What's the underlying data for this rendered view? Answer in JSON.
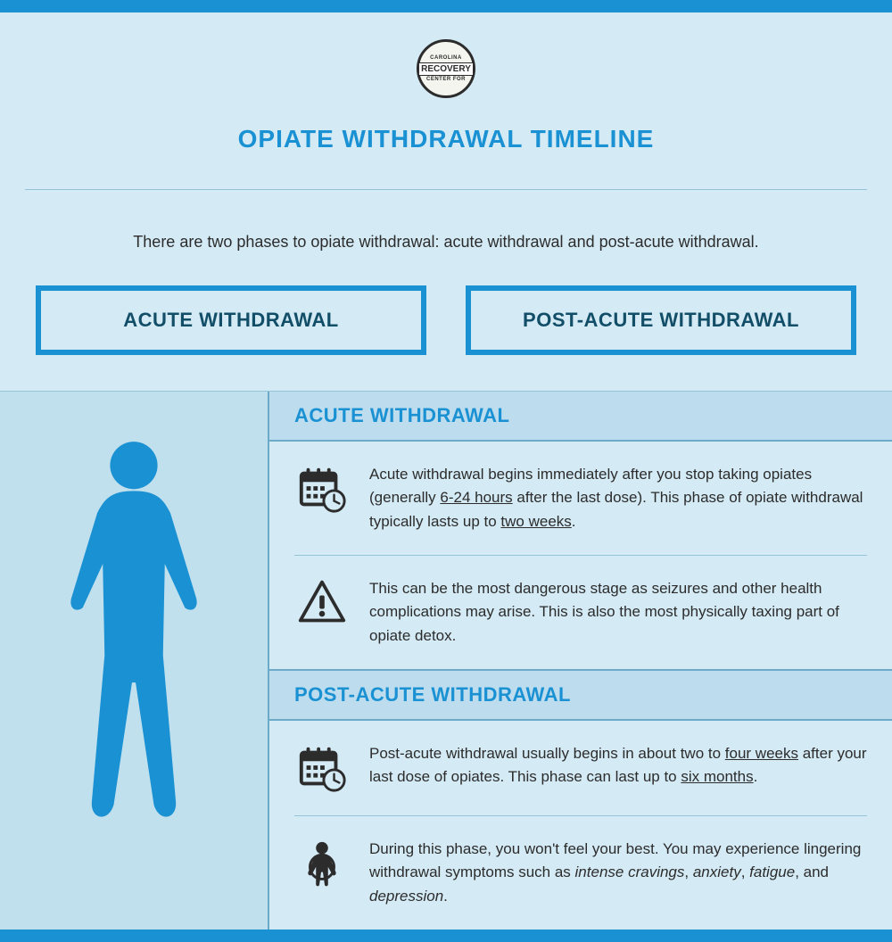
{
  "colors": {
    "accent": "#1a91d3",
    "bg": "#d4eaf5",
    "bg_alt": "#c0e0ee",
    "header_bg": "#bddced",
    "border": "#95c4d9",
    "border_strong": "#6cabc7",
    "text": "#2c2c2c",
    "box_text": "#124e68",
    "icon": "#2c2c2c"
  },
  "logo": {
    "top_text": "CAROLINA",
    "mid_text": "RECOVERY",
    "bottom_text": "CENTER FOR"
  },
  "title": "OPIATE WITHDRAWAL TIMELINE",
  "intro": "There are two phases to opiate withdrawal: acute withdrawal and post-acute withdrawal.",
  "phases": {
    "acute_label": "ACUTE WITHDRAWAL",
    "post_label": "POST-ACUTE WITHDRAWAL"
  },
  "sections": {
    "acute": {
      "header": "ACUTE WITHDRAWAL",
      "rows": [
        {
          "icon": "calendar-clock",
          "parts": [
            {
              "t": "Acute withdrawal begins immediately after you stop taking opiates (generally "
            },
            {
              "t": "6-24 hours",
              "u": true
            },
            {
              "t": " after the last dose). This phase of opiate withdrawal typically lasts up to "
            },
            {
              "t": "two weeks",
              "u": true
            },
            {
              "t": "."
            }
          ]
        },
        {
          "icon": "warning",
          "parts": [
            {
              "t": "This can be the most dangerous stage as seizures and other health complications may arise. This is also the most physically taxing part of opiate detox."
            }
          ]
        }
      ]
    },
    "post": {
      "header": "POST-ACUTE WITHDRAWAL",
      "rows": [
        {
          "icon": "calendar-clock",
          "parts": [
            {
              "t": "Post-acute withdrawal usually begins in about two to "
            },
            {
              "t": "four weeks",
              "u": true
            },
            {
              "t": " after your last dose of opiates. This phase can last up to "
            },
            {
              "t": "six months",
              "u": true
            },
            {
              "t": "."
            }
          ]
        },
        {
          "icon": "person-symptoms",
          "parts": [
            {
              "t": "During this phase, you won't feel your best. You may experience lingering withdrawal symptoms such as "
            },
            {
              "t": "intense cravings",
              "i": true
            },
            {
              "t": ", "
            },
            {
              "t": "anxiety",
              "i": true
            },
            {
              "t": ", "
            },
            {
              "t": "fatigue",
              "i": true
            },
            {
              "t": ", and "
            },
            {
              "t": "depression",
              "i": true
            },
            {
              "t": "."
            }
          ]
        }
      ]
    }
  }
}
